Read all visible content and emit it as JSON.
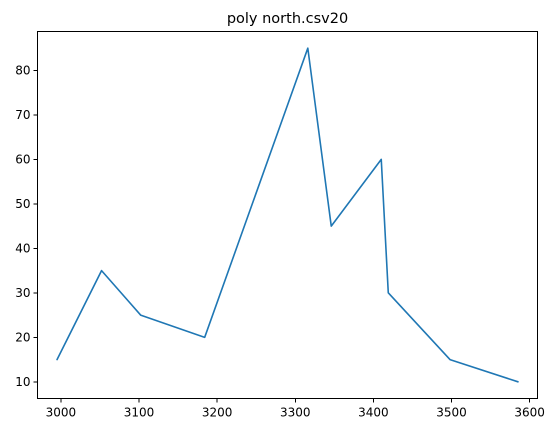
{
  "chart_data": {
    "type": "line",
    "title": "poly north.csv20",
    "xlabel": "",
    "ylabel": "",
    "xlim": [
      2970,
      3610
    ],
    "ylim": [
      6.25,
      88.75
    ],
    "grid": false,
    "x_ticks": [
      3000,
      3100,
      3200,
      3300,
      3400,
      3500,
      3600
    ],
    "y_ticks": [
      10,
      20,
      30,
      40,
      50,
      60,
      70,
      80
    ],
    "series": [
      {
        "color": "#1f77b4",
        "x": [
          2995,
          3052,
          3102,
          3184,
          3316,
          3346,
          3410,
          3419,
          3498,
          3585
        ],
        "y": [
          15,
          35,
          25,
          20,
          85,
          45,
          60,
          30,
          15,
          10
        ]
      }
    ]
  }
}
